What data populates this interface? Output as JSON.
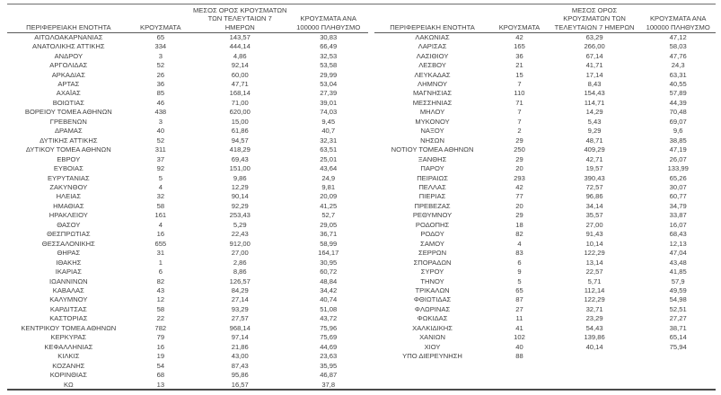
{
  "headers": {
    "region": "ΠΕΡΙΦΕΡΕΙΑΚΗ ΕΝΟΤΗΤΑ",
    "cases": "ΚΡΟΥΣΜΑΤΑ",
    "avg_7day": "ΜΕΣΟΣ ΟΡΟΣ ΚΡΟΥΣΜΑΤΩΝ ΤΩΝ ΤΕΛΕΥΤΑΙΩΝ 7 ΗΜΕΡΩΝ",
    "per_100k": "ΚΡΟΥΣΜΑΤΑ ΑΝΑ 100000 ΠΛΗΘΥΣΜΟ"
  },
  "colors": {
    "text": "#3f3f3f",
    "border_top": "#6d6d6d",
    "border_bottom": "#4a4a4a",
    "header_underline": "#595959",
    "background": "#ffffff"
  },
  "left_table": {
    "rows": [
      [
        "ΑΙΤΩΛΟΑΚΑΡΝΑΝΙΑΣ",
        "65",
        "143,57",
        "30,83"
      ],
      [
        "ΑΝΑΤΟΛΙΚΗΣ ΑΤΤΙΚΗΣ",
        "334",
        "444,14",
        "66,49"
      ],
      [
        "ΑΝΔΡΟΥ",
        "3",
        "4,86",
        "32,53"
      ],
      [
        "ΑΡΓΟΛΙΔΑΣ",
        "52",
        "92,14",
        "53,58"
      ],
      [
        "ΑΡΚΑΔΙΑΣ",
        "26",
        "60,00",
        "29,99"
      ],
      [
        "ΑΡΤΑΣ",
        "36",
        "47,71",
        "53,04"
      ],
      [
        "ΑΧΑΪΑΣ",
        "85",
        "168,14",
        "27,39"
      ],
      [
        "ΒΟΙΩΤΙΑΣ",
        "46",
        "71,00",
        "39,01"
      ],
      [
        "ΒΟΡΕΙΟΥ ΤΟΜΕΑ ΑΘΗΝΩΝ",
        "438",
        "620,00",
        "74,03"
      ],
      [
        "ΓΡΕΒΕΝΩΝ",
        "3",
        "15,00",
        "9,45"
      ],
      [
        "ΔΡΑΜΑΣ",
        "40",
        "61,86",
        "40,7"
      ],
      [
        "ΔΥΤΙΚΗΣ ΑΤΤΙΚΗΣ",
        "52",
        "94,57",
        "32,31"
      ],
      [
        "ΔΥΤΙΚΟΥ ΤΟΜΕΑ ΑΘΗΝΩΝ",
        "311",
        "418,29",
        "63,51"
      ],
      [
        "ΕΒΡΟΥ",
        "37",
        "69,43",
        "25,01"
      ],
      [
        "ΕΥΒΟΙΑΣ",
        "92",
        "151,00",
        "43,64"
      ],
      [
        "ΕΥΡΥΤΑΝΙΑΣ",
        "5",
        "9,86",
        "24,9"
      ],
      [
        "ΖΑΚΥΝΘΟΥ",
        "4",
        "12,29",
        "9,81"
      ],
      [
        "ΗΛΕΙΑΣ",
        "32",
        "90,14",
        "20,09"
      ],
      [
        "ΗΜΑΘΙΑΣ",
        "58",
        "92,29",
        "41,25"
      ],
      [
        "ΗΡΑΚΛΕΙΟΥ",
        "161",
        "253,43",
        "52,7"
      ],
      [
        "ΘΑΣΟΥ",
        "4",
        "5,29",
        "29,05"
      ],
      [
        "ΘΕΣΠΡΩΤΙΑΣ",
        "16",
        "22,43",
        "36,71"
      ],
      [
        "ΘΕΣΣΑΛΟΝΙΚΗΣ",
        "655",
        "912,00",
        "58,99"
      ],
      [
        "ΘΗΡΑΣ",
        "31",
        "27,00",
        "164,17"
      ],
      [
        "ΙΘΑΚΗΣ",
        "1",
        "2,86",
        "30,95"
      ],
      [
        "ΙΚΑΡΙΑΣ",
        "6",
        "8,86",
        "60,72"
      ],
      [
        "ΙΩΑΝΝΙΝΩΝ",
        "82",
        "126,57",
        "48,84"
      ],
      [
        "ΚΑΒΑΛΑΣ",
        "43",
        "84,29",
        "34,42"
      ],
      [
        "ΚΑΛΥΜΝΟΥ",
        "12",
        "27,14",
        "40,74"
      ],
      [
        "ΚΑΡΔΙΤΣΑΣ",
        "58",
        "93,29",
        "51,08"
      ],
      [
        "ΚΑΣΤΟΡΙΑΣ",
        "22",
        "27,57",
        "43,72"
      ],
      [
        "ΚΕΝΤΡΙΚΟΥ ΤΟΜΕΑ ΑΘΗΝΩΝ",
        "782",
        "968,14",
        "75,96"
      ],
      [
        "ΚΕΡΚΥΡΑΣ",
        "79",
        "97,14",
        "75,69"
      ],
      [
        "ΚΕΦΑΛΛΗΝΙΑΣ",
        "16",
        "21,86",
        "44,69"
      ],
      [
        "ΚΙΛΚΙΣ",
        "19",
        "43,00",
        "23,63"
      ],
      [
        "ΚΟΖΑΝΗΣ",
        "54",
        "87,43",
        "35,95"
      ],
      [
        "ΚΟΡΙΝΘΙΑΣ",
        "68",
        "95,86",
        "46,87"
      ],
      [
        "ΚΩ",
        "13",
        "16,57",
        "37,8"
      ]
    ]
  },
  "right_table": {
    "rows": [
      [
        "ΛΑΚΩΝΙΑΣ",
        "42",
        "63,29",
        "47,12"
      ],
      [
        "ΛΑΡΙΣΑΣ",
        "165",
        "266,00",
        "58,03"
      ],
      [
        "ΛΑΣΙΘΙΟΥ",
        "36",
        "67,14",
        "47,76"
      ],
      [
        "ΛΕΣΒΟΥ",
        "21",
        "41,71",
        "24,3"
      ],
      [
        "ΛΕΥΚΑΔΑΣ",
        "15",
        "17,14",
        "63,31"
      ],
      [
        "ΛΗΜΝΟΥ",
        "7",
        "8,43",
        "40,55"
      ],
      [
        "ΜΑΓΝΗΣΙΑΣ",
        "110",
        "154,43",
        "57,89"
      ],
      [
        "ΜΕΣΣΗΝΙΑΣ",
        "71",
        "114,71",
        "44,39"
      ],
      [
        "ΜΗΛΟΥ",
        "7",
        "14,29",
        "70,48"
      ],
      [
        "ΜΥΚΟΝΟΥ",
        "7",
        "5,43",
        "69,07"
      ],
      [
        "ΝΑΞΟΥ",
        "2",
        "9,29",
        "9,6"
      ],
      [
        "ΝΗΣΩΝ",
        "29",
        "48,71",
        "38,85"
      ],
      [
        "ΝΟΤΙΟΥ ΤΟΜΕΑ ΑΘΗΝΩΝ",
        "250",
        "409,29",
        "47,19"
      ],
      [
        "ΞΑΝΘΗΣ",
        "29",
        "42,71",
        "26,07"
      ],
      [
        "ΠΑΡΟΥ",
        "20",
        "19,57",
        "133,99"
      ],
      [
        "ΠΕΙΡΑΙΩΣ",
        "293",
        "390,43",
        "65,26"
      ],
      [
        "ΠΕΛΛΑΣ",
        "42",
        "72,57",
        "30,07"
      ],
      [
        "ΠΙΕΡΙΑΣ",
        "77",
        "96,86",
        "60,77"
      ],
      [
        "ΠΡΕΒΕΖΑΣ",
        "20",
        "34,14",
        "34,79"
      ],
      [
        "ΡΕΘΥΜΝΟΥ",
        "29",
        "35,57",
        "33,87"
      ],
      [
        "ΡΟΔΟΠΗΣ",
        "18",
        "27,00",
        "16,07"
      ],
      [
        "ΡΟΔΟΥ",
        "82",
        "91,43",
        "68,43"
      ],
      [
        "ΣΑΜΟΥ",
        "4",
        "10,14",
        "12,13"
      ],
      [
        "ΣΕΡΡΩΝ",
        "83",
        "122,29",
        "47,04"
      ],
      [
        "ΣΠΟΡΑΔΩΝ",
        "6",
        "13,14",
        "43,48"
      ],
      [
        "ΣΥΡΟΥ",
        "9",
        "22,57",
        "41,85"
      ],
      [
        "ΤΗΝΟΥ",
        "5",
        "5,71",
        "57,9"
      ],
      [
        "ΤΡΙΚΑΛΩΝ",
        "65",
        "112,14",
        "49,59"
      ],
      [
        "ΦΘΙΩΤΙΔΑΣ",
        "87",
        "122,29",
        "54,98"
      ],
      [
        "ΦΛΩΡΙΝΑΣ",
        "27",
        "32,71",
        "52,51"
      ],
      [
        "ΦΩΚΙΔΑΣ",
        "11",
        "23,29",
        "27,27"
      ],
      [
        "ΧΑΛΚΙΔΙΚΗΣ",
        "41",
        "54,43",
        "38,71"
      ],
      [
        "ΧΑΝΙΩΝ",
        "102",
        "139,86",
        "65,14"
      ],
      [
        "ΧΙΟΥ",
        "40",
        "40,14",
        "75,94"
      ],
      [
        "ΥΠΟ ΔΙΕΡΕΥΝΗΣΗ",
        "88",
        "",
        ""
      ]
    ]
  }
}
